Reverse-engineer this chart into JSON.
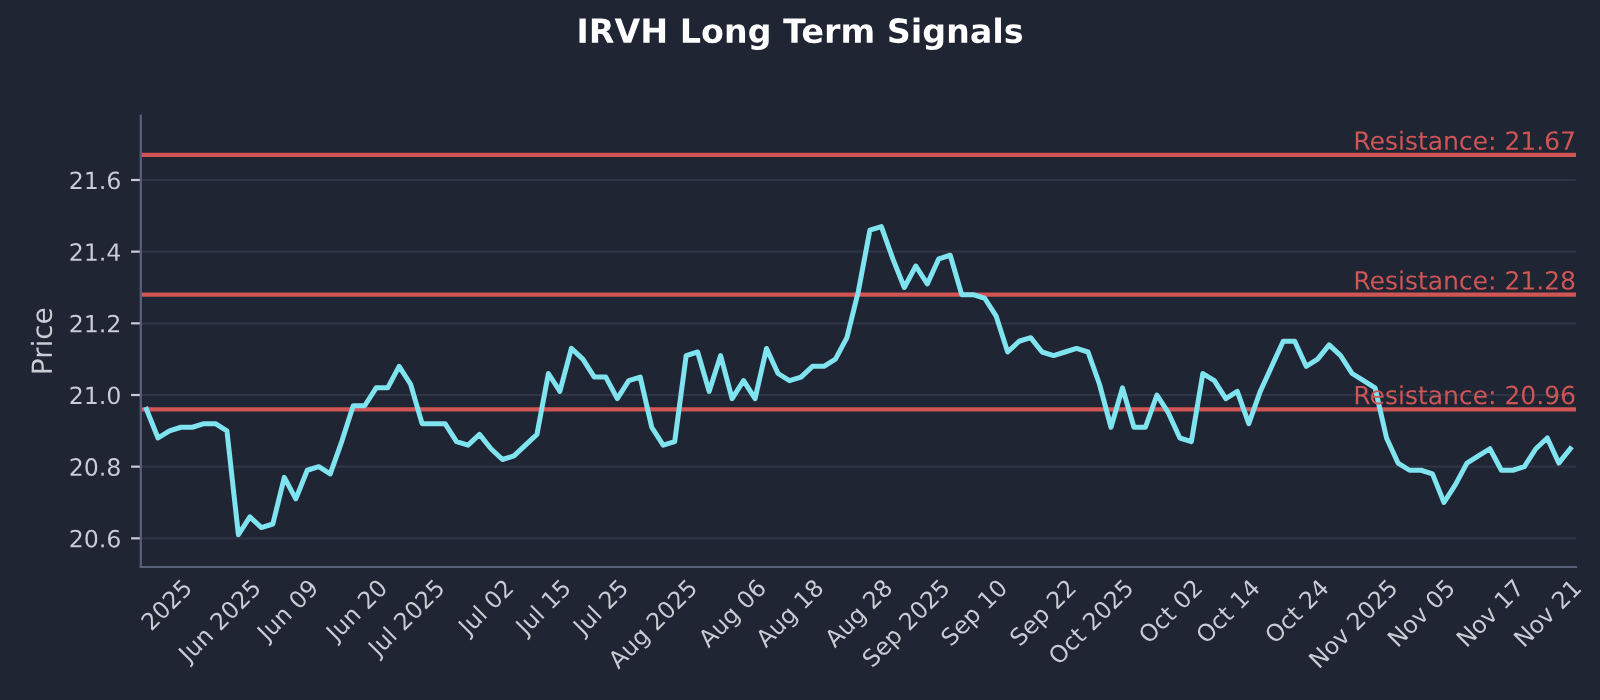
{
  "chart_data": {
    "type": "line",
    "title": "IRVH Long Term Signals",
    "ylabel": "Price",
    "categories": [
      null,
      null,
      null,
      "2025",
      null,
      null,
      null,
      null,
      null,
      "Jun 2025",
      null,
      null,
      null,
      null,
      "Jun 09",
      null,
      null,
      null,
      null,
      null,
      "Jun 20",
      null,
      null,
      null,
      null,
      "Jul 2025",
      null,
      null,
      null,
      null,
      null,
      "Jul 02",
      null,
      null,
      null,
      null,
      "Jul 15",
      null,
      null,
      null,
      null,
      "Jul 25",
      null,
      null,
      null,
      null,
      null,
      "Aug 2025",
      null,
      null,
      null,
      null,
      null,
      "Aug 06",
      null,
      null,
      null,
      null,
      "Aug 18",
      null,
      null,
      null,
      null,
      null,
      "Aug 28",
      null,
      null,
      null,
      null,
      "Sep 2025",
      null,
      null,
      null,
      null,
      "Sep 10",
      null,
      null,
      null,
      null,
      null,
      "Sep 22",
      null,
      null,
      null,
      null,
      "Oct 2025",
      null,
      null,
      null,
      null,
      null,
      "Oct 02",
      null,
      null,
      null,
      null,
      "Oct 14",
      null,
      null,
      null,
      null,
      null,
      "Oct 24",
      null,
      null,
      null,
      null,
      null,
      "Nov 2025",
      null,
      null,
      null,
      null,
      "Nov 05",
      null,
      null,
      null,
      null,
      null,
      "Nov 17",
      null,
      null,
      null,
      null,
      "Nov 21"
    ],
    "series": [
      {
        "color": "#7fe3f0",
        "values": [
          20.96,
          20.88,
          20.9,
          20.91,
          20.91,
          20.92,
          20.92,
          20.9,
          20.61,
          20.66,
          20.63,
          20.64,
          20.77,
          20.71,
          20.79,
          20.8,
          20.78,
          20.87,
          20.97,
          20.97,
          21.02,
          21.02,
          21.08,
          21.03,
          20.92,
          20.92,
          20.92,
          20.87,
          20.86,
          20.89,
          20.85,
          20.82,
          20.83,
          20.86,
          20.89,
          21.06,
          21.01,
          21.13,
          21.1,
          21.05,
          21.05,
          20.99,
          21.04,
          21.05,
          20.91,
          20.86,
          20.87,
          21.11,
          21.12,
          21.01,
          21.11,
          20.99,
          21.04,
          20.99,
          21.13,
          21.06,
          21.04,
          21.05,
          21.08,
          21.08,
          21.1,
          21.16,
          21.29,
          21.46,
          21.47,
          21.38,
          21.3,
          21.36,
          21.31,
          21.38,
          21.39,
          21.28,
          21.28,
          21.27,
          21.22,
          21.12,
          21.15,
          21.16,
          21.12,
          21.11,
          21.12,
          21.13,
          21.12,
          21.03,
          20.91,
          21.02,
          20.91,
          20.91,
          21.0,
          20.95,
          20.88,
          20.87,
          21.06,
          21.04,
          20.99,
          21.01,
          20.92,
          21.01,
          21.08,
          21.15,
          21.15,
          21.08,
          21.1,
          21.14,
          21.11,
          21.06,
          21.04,
          21.02,
          20.88,
          20.81,
          20.79,
          20.79,
          20.78,
          20.7,
          20.75,
          20.81,
          20.83,
          20.85,
          20.79,
          20.79,
          20.8,
          20.85,
          20.88,
          20.81,
          20.85
        ]
      }
    ],
    "ylim": [
      20.52,
      21.78
    ],
    "yticks": [
      20.6,
      20.8,
      {
        "value": 21,
        "label": "21.0"
      },
      21.2,
      21.4,
      21.6
    ],
    "grid": "y",
    "legend": false,
    "marker": "none",
    "line_style": "solid",
    "ref_lines": [
      {
        "axis": "y",
        "value": 21.67,
        "label": "Resistance: 21.67",
        "color": "#d05555"
      },
      {
        "axis": "y",
        "value": 21.28,
        "label": "Resistance: 21.28",
        "color": "#d05555"
      },
      {
        "axis": "y",
        "value": 20.96,
        "label": "Resistance: 20.96",
        "color": "#d05555"
      }
    ]
  }
}
